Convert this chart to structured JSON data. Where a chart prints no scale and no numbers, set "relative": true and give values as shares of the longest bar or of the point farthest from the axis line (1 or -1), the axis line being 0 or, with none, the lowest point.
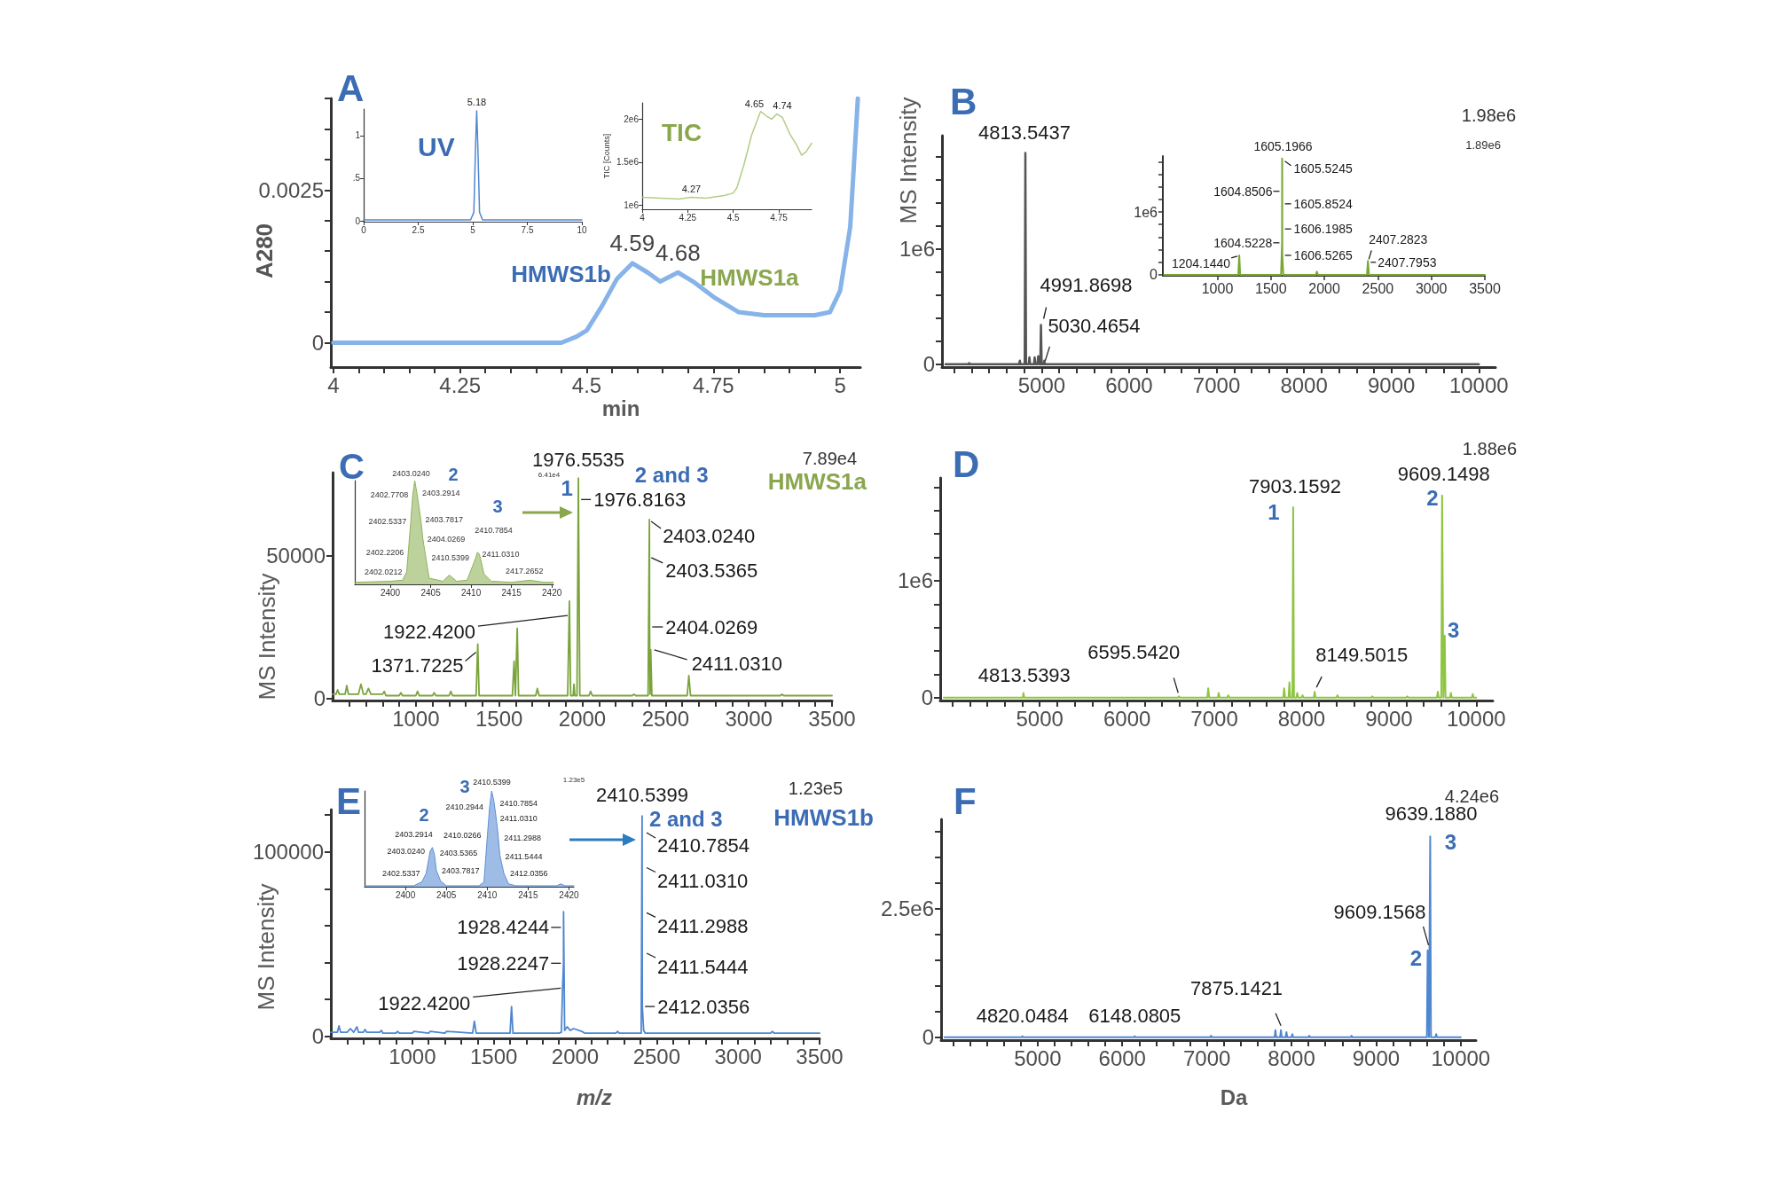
{
  "chart_data": [
    {
      "type": "line",
      "title": "A",
      "xlabel": "min",
      "ylabel": "A280",
      "color": "#86b3e8",
      "x": [
        4,
        4.25,
        4.45,
        4.48,
        4.5,
        4.53,
        4.56,
        4.59,
        4.62,
        4.645,
        4.68,
        4.71,
        4.75,
        4.8,
        4.85,
        4.9,
        4.95,
        4.98,
        5,
        5.02,
        5.035
      ],
      "values": [
        0,
        0,
        0,
        0.0001,
        0.0002,
        0.0006,
        0.00105,
        0.0013,
        0.00115,
        0.001,
        0.00115,
        0.001,
        0.00075,
        0.0005,
        0.00045,
        0.00045,
        0.00045,
        0.0005,
        0.00085,
        0.0019,
        0.004
      ],
      "xlim": [
        3.995,
        5.04
      ],
      "xticks": [
        4,
        {
          "value": 4.05,
          "label": null
        },
        {
          "value": 4.1,
          "label": null
        },
        {
          "value": 4.15,
          "label": null
        },
        {
          "value": 4.2,
          "label": null
        },
        4.25,
        {
          "value": 4.3,
          "label": null
        },
        {
          "value": 4.35,
          "label": null
        },
        {
          "value": 4.4,
          "label": null
        },
        {
          "value": 4.45,
          "label": null
        },
        4.5,
        {
          "value": 4.55,
          "label": null
        },
        {
          "value": 4.6,
          "label": null
        },
        {
          "value": 4.65,
          "label": null
        },
        {
          "value": 4.7,
          "label": null
        },
        4.75,
        {
          "value": 4.8,
          "label": null
        },
        {
          "value": 4.85,
          "label": null
        },
        {
          "value": 4.9,
          "label": null
        },
        {
          "value": 4.95,
          "label": null
        },
        5
      ],
      "ylim": [
        -0.0004,
        0.004
      ],
      "yticks": [
        0,
        {
          "value": 0.0005,
          "label": null
        },
        {
          "value": 0.001,
          "label": null
        },
        {
          "value": 0.0015,
          "label": null
        },
        {
          "value": 0.002,
          "label": null
        },
        0.0025,
        {
          "value": 0.003,
          "label": null
        },
        {
          "value": 0.0035,
          "label": null
        },
        {
          "value": 0.004,
          "label": null
        }
      ],
      "annotations": [
        {
          "text": "4.59",
          "x": 4.59,
          "y": 0.0013
        },
        {
          "text": "4.68",
          "x": 4.68,
          "y": 0.00115
        },
        {
          "text": "HMWS1b",
          "x": 4.59,
          "y": 0.0013
        },
        {
          "text": "HMWS1a",
          "x": 4.68,
          "y": 0.00115
        }
      ]
    },
    {
      "type": "line",
      "title": "UV",
      "color": "#4f86d0",
      "x": [
        0,
        2,
        4.9,
        5.05,
        5.12,
        5.18,
        5.24,
        5.31,
        5.45,
        8,
        10
      ],
      "values": [
        0.01,
        0.01,
        0.01,
        0.1,
        0.8,
        1.29,
        0.8,
        0.1,
        0.01,
        0.01,
        0.01
      ],
      "xlim": [
        0,
        10
      ],
      "xticks": [
        0,
        2.5,
        5,
        7.5,
        10
      ],
      "ylim": [
        -0.01,
        1.31
      ],
      "yticks": [
        0,
        {
          "value": 0.5,
          "label": ".5"
        },
        1
      ],
      "annotations": [
        {
          "text": "5.18",
          "x": 5.18,
          "y": 1.29
        }
      ]
    },
    {
      "type": "line",
      "title": "TIC",
      "ylabel": "TIC [Counts]",
      "color": "#b3cd85",
      "x": [
        4,
        4.1,
        4.2,
        4.27,
        4.35,
        4.45,
        4.5,
        4.52,
        4.56,
        4.6,
        4.65,
        4.68,
        4.71,
        4.74,
        4.77,
        4.81,
        4.85,
        4.875,
        4.9,
        4.93
      ],
      "values": [
        1090000,
        1080000,
        1070000,
        1090000,
        1080000,
        1110000,
        1140000,
        1200000,
        1480000,
        1810000,
        2090000,
        2040000,
        2000000,
        2060000,
        2020000,
        1830000,
        1690000,
        1580000,
        1620000,
        1720000
      ],
      "xlim": [
        4,
        4.93
      ],
      "xticks": [
        4,
        4.25,
        4.5,
        4.75
      ],
      "ylim": [
        950000,
        2190000
      ],
      "yticks": [
        {
          "value": 1000000,
          "label": "1e6"
        },
        {
          "value": 1500000,
          "label": "1.5e6"
        },
        {
          "value": 2000000,
          "label": "2e6"
        }
      ],
      "annotations": [
        {
          "text": "4.27",
          "x": 4.27,
          "y": 1090000
        },
        {
          "text": "4.65",
          "x": 4.65,
          "y": 2090000
        },
        {
          "text": "4.74",
          "x": 4.74,
          "y": 2060000
        }
      ]
    },
    {
      "type": "line",
      "title": "B",
      "ylabel": "MS Intensity",
      "color": "#555555",
      "x": [
        3900,
        4162,
        4170,
        4178,
        4742,
        4750,
        4758,
        4806,
        4813.5437,
        4821,
        4852,
        4860,
        4868,
        4912,
        4920,
        4928,
        4952,
        4960,
        4968,
        4984,
        4991.8698,
        5000,
        5022,
        5030.4654,
        5038,
        10000
      ],
      "values": [
        0,
        0,
        10000,
        0,
        0,
        30000,
        0,
        0,
        1830000,
        0,
        0,
        60000,
        0,
        0,
        60000,
        0,
        0,
        70000,
        0,
        0,
        340000,
        0,
        0,
        30000,
        0,
        0
      ],
      "xlim": [
        3860,
        10190
      ],
      "xticks": [
        {
          "value": 4000,
          "label": null
        },
        {
          "value": 4200,
          "label": null
        },
        {
          "value": 4400,
          "label": null
        },
        {
          "value": 4600,
          "label": null
        },
        {
          "value": 4800,
          "label": null
        },
        5000,
        {
          "value": 5200,
          "label": null
        },
        {
          "value": 5400,
          "label": null
        },
        {
          "value": 5600,
          "label": null
        },
        {
          "value": 5800,
          "label": null
        },
        6000,
        {
          "value": 6200,
          "label": null
        },
        {
          "value": 6400,
          "label": null
        },
        {
          "value": 6600,
          "label": null
        },
        {
          "value": 6800,
          "label": null
        },
        7000,
        {
          "value": 7200,
          "label": null
        },
        {
          "value": 7400,
          "label": null
        },
        {
          "value": 7600,
          "label": null
        },
        {
          "value": 7800,
          "label": null
        },
        8000,
        {
          "value": 8200,
          "label": null
        },
        {
          "value": 8400,
          "label": null
        },
        {
          "value": 8600,
          "label": null
        },
        {
          "value": 8800,
          "label": null
        },
        9000,
        {
          "value": 9200,
          "label": null
        },
        {
          "value": 9400,
          "label": null
        },
        {
          "value": 9600,
          "label": null
        },
        {
          "value": 9800,
          "label": null
        },
        10000
      ],
      "ylim": [
        -25000,
        1980000
      ],
      "yticks": [
        0,
        {
          "value": 200000,
          "label": null
        },
        {
          "value": 400000,
          "label": null
        },
        {
          "value": 600000,
          "label": null
        },
        {
          "value": 800000,
          "label": null
        },
        {
          "value": 1000000,
          "label": "1e6"
        },
        {
          "value": 1200000,
          "label": null
        },
        {
          "value": 1400000,
          "label": null
        },
        {
          "value": 1600000,
          "label": null
        },
        {
          "value": 1800000,
          "label": null
        }
      ],
      "annotations": [
        "1.98e6",
        {
          "text": "4813.5437",
          "x": 4813.5437,
          "y": 1830000
        },
        {
          "text": "4991.8698",
          "x": 4991.8698,
          "y": 340000
        },
        {
          "text": "5030.4654",
          "x": 5030.4654,
          "y": 30000
        }
      ]
    },
    {
      "type": "line",
      "color": "#78a832",
      "x": [
        500,
        1195,
        1204.144,
        1213,
        1595,
        1604.5228,
        1604.8506,
        1605.1966,
        1605.5245,
        1605.8524,
        1606.1985,
        1606.5265,
        1616,
        1920,
        1930,
        1940,
        2398,
        2407.2823,
        2407.7953,
        2417,
        3500
      ],
      "values": [
        0,
        0,
        310000,
        0,
        0,
        510000,
        1330000,
        1850000,
        1780000,
        1130000,
        730000,
        310000,
        0,
        0,
        50000,
        0,
        0,
        220000,
        200000,
        0,
        0
      ],
      "xlim": [
        490,
        3500
      ],
      "xticks": [
        1000,
        1500,
        2000,
        2500,
        3000,
        3500
      ],
      "ylim": [
        -15000,
        1890000
      ],
      "yticks": [
        0,
        {
          "value": 200000,
          "label": null
        },
        {
          "value": 400000,
          "label": null
        },
        {
          "value": 600000,
          "label": null
        },
        {
          "value": 800000,
          "label": null
        },
        {
          "value": 1000000,
          "label": "1e6"
        },
        {
          "value": 1200000,
          "label": null
        },
        {
          "value": 1400000,
          "label": null
        },
        {
          "value": 1600000,
          "label": null
        },
        {
          "value": 1800000,
          "label": null
        }
      ],
      "annotations": [
        "1.89e6",
        {
          "text": "1605.1966",
          "x": 1605.1966,
          "y": 1850000
        },
        {
          "text": "1605.5245",
          "x": 1605.5245,
          "y": 1780000
        },
        {
          "text": "1604.8506",
          "x": 1604.8506,
          "y": 1330000
        },
        {
          "text": "1605.8524",
          "x": 1605.8524,
          "y": 1130000
        },
        {
          "text": "1606.1985",
          "x": 1606.1985,
          "y": 730000
        },
        {
          "text": "1604.5228",
          "x": 1604.5228,
          "y": 510000
        },
        {
          "text": "1606.5265",
          "x": 1606.5265,
          "y": 310000
        },
        {
          "text": "1204.1440",
          "x": 1204.144,
          "y": 310000
        },
        {
          "text": "2407.2823",
          "x": 2407.2823,
          "y": 220000
        },
        {
          "text": "2407.7953",
          "x": 2407.7953,
          "y": 200000
        }
      ]
    },
    {
      "type": "line",
      "title": "C",
      "ylabel": "MS Intensity",
      "color": "#7aa43a",
      "x": [
        500,
        520,
        530,
        540,
        575,
        585,
        595,
        655,
        670,
        685,
        700,
        715,
        730,
        800,
        810,
        820,
        900,
        910,
        920,
        1000,
        1010,
        1020,
        1100,
        1110,
        1120,
        1200,
        1210,
        1220,
        1362,
        1371.7225,
        1380,
        1580,
        1590,
        1598,
        1601,
        1609,
        1617,
        1720,
        1730,
        1740,
        1912,
        1922.42,
        1930,
        1945,
        1950,
        1955,
        1968,
        1976.5535,
        1976.8163,
        1985,
        2040,
        2050,
        2060,
        2300,
        2310,
        2320,
        2395,
        2403.024,
        2403.5365,
        2404.0269,
        2407,
        2411.031,
        2418,
        2630,
        2640,
        2650,
        3190,
        3200,
        3210,
        3500
      ],
      "values": [
        1500,
        1500,
        3000,
        1500,
        1500,
        4500,
        1500,
        1500,
        5000,
        1500,
        1500,
        3500,
        1500,
        1500,
        2500,
        1000,
        1000,
        2000,
        1000,
        1000,
        2500,
        1000,
        1000,
        2000,
        1000,
        1000,
        2500,
        1000,
        1000,
        19000,
        1000,
        1000,
        13000,
        1000,
        1000,
        24500,
        1000,
        1000,
        3500,
        1000,
        1000,
        34000,
        1000,
        1000,
        5000,
        1000,
        1000,
        77000,
        69500,
        1000,
        1000,
        2500,
        1000,
        1000,
        1500,
        1000,
        1000,
        62500,
        49500,
        25000,
        1500,
        17000,
        1000,
        1000,
        8000,
        1000,
        1000,
        1500,
        1000,
        1000
      ],
      "xlim": [
        500,
        3500
      ],
      "xticks": [
        {
          "value": 600,
          "label": null
        },
        {
          "value": 700,
          "label": null
        },
        {
          "value": 800,
          "label": null
        },
        {
          "value": 900,
          "label": null
        },
        1000,
        {
          "value": 1100,
          "label": null
        },
        {
          "value": 1200,
          "label": null
        },
        {
          "value": 1300,
          "label": null
        },
        {
          "value": 1400,
          "label": null
        },
        1500,
        {
          "value": 1600,
          "label": null
        },
        {
          "value": 1700,
          "label": null
        },
        {
          "value": 1800,
          "label": null
        },
        {
          "value": 1900,
          "label": null
        },
        2000,
        {
          "value": 2100,
          "label": null
        },
        {
          "value": 2200,
          "label": null
        },
        {
          "value": 2300,
          "label": null
        },
        {
          "value": 2400,
          "label": null
        },
        2500,
        {
          "value": 2600,
          "label": null
        },
        {
          "value": 2700,
          "label": null
        },
        {
          "value": 2800,
          "label": null
        },
        {
          "value": 2900,
          "label": null
        },
        3000,
        {
          "value": 3100,
          "label": null
        },
        {
          "value": 3200,
          "label": null
        },
        {
          "value": 3300,
          "label": null
        },
        {
          "value": 3400,
          "label": null
        },
        3500
      ],
      "ylim": [
        -700,
        78900
      ],
      "yticks": [
        0,
        50000
      ],
      "annotations": [
        "7.89e4",
        "HMWS1a",
        {
          "text": "1976.5535",
          "x": 1976.5535,
          "y": 77000
        },
        {
          "text": "1",
          "x": 1976.5535,
          "y": 77000
        },
        {
          "text": "1976.8163",
          "x": 1976.8163,
          "y": 69500
        },
        {
          "text": "2 and 3",
          "x": 2403.024,
          "y": 62500
        },
        {
          "text": "2403.0240",
          "x": 2403.024,
          "y": 62500
        },
        {
          "text": "2403.5365",
          "x": 2403.5365,
          "y": 49500
        },
        {
          "text": "2404.0269",
          "x": 2404.0269,
          "y": 25000
        },
        {
          "text": "2411.0310",
          "x": 2411.031,
          "y": 17000
        },
        {
          "text": "1922.4200",
          "x": 1922.42,
          "y": 29000
        },
        {
          "text": "1371.7225",
          "x": 1371.7225,
          "y": 19000
        }
      ]
    },
    {
      "type": "area",
      "relative": true,
      "color": "#8fb35a",
      "x": [
        2395.6,
        2400,
        2401.5,
        2402.0212,
        2402.2206,
        2402.5337,
        2402.7708,
        2403.024,
        2403.2914,
        2403.5365,
        2403.7817,
        2404.0269,
        2404.8,
        2406.5,
        2407.3,
        2408.2,
        2409.5,
        2410.2,
        2410.5399,
        2410.7854,
        2411.031,
        2411.6,
        2412.5,
        2415,
        2417.2652,
        2419,
        2420.2
      ],
      "values": [
        0.02,
        0.03,
        0.04,
        0.12,
        0.31,
        0.61,
        0.86,
        1,
        0.88,
        0.75,
        0.62,
        0.44,
        0.06,
        0.03,
        0.09,
        0.03,
        0.04,
        0.18,
        0.25,
        0.31,
        0.29,
        0.1,
        0.03,
        0.02,
        0.04,
        0.02,
        0.02
      ],
      "xlim": [
        2395.6,
        2420.2
      ],
      "xticks": [
        2400,
        2405,
        2410,
        2415,
        2420
      ],
      "annotations": [
        "6.41e4",
        "2",
        "3",
        {
          "text": "2403.0240",
          "x": 2403.024,
          "y": 1
        },
        {
          "text": "2402.7708",
          "x": 2402.7708,
          "y": 0.86
        },
        {
          "text": "2403.2914",
          "x": 2403.2914,
          "y": 0.88
        },
        {
          "text": "2402.5337",
          "x": 2402.5337,
          "y": 0.61
        },
        {
          "text": "2403.7817",
          "x": 2403.7817,
          "y": 0.62
        },
        {
          "text": "2402.2206",
          "x": 2402.2206,
          "y": 0.31
        },
        {
          "text": "2404.0269",
          "x": 2404.0269,
          "y": 0.44
        },
        {
          "text": "2402.0212",
          "x": 2402.0212,
          "y": 0.12
        },
        {
          "text": "2410.7854",
          "x": 2410.7854,
          "y": 0.31
        },
        {
          "text": "2410.5399",
          "x": 2410.5399,
          "y": 0.25
        },
        {
          "text": "2411.0310",
          "x": 2411.031,
          "y": 0.29
        },
        {
          "text": "2417.2652",
          "x": 2417.2652,
          "y": 0.04
        }
      ]
    },
    {
      "type": "line",
      "title": "D",
      "color": "#8dc540",
      "x": [
        3900,
        4805,
        4813.5393,
        4822,
        6585,
        6595.542,
        6605,
        6920,
        6930,
        6940,
        7040,
        7050,
        7060,
        7150,
        7160,
        7170,
        7790,
        7800,
        7810,
        7850,
        7860,
        7870,
        7895,
        7903.1592,
        7912,
        7940,
        7950,
        7960,
        8000,
        8010,
        8020,
        8140,
        8149.5015,
        8158,
        8400,
        8410,
        8420,
        8800,
        8810,
        8820,
        9200,
        9210,
        9220,
        9550,
        9560,
        9570,
        9600,
        9609.1498,
        9624,
        9630,
        9639,
        9648,
        9700,
        9710,
        9720,
        9950,
        9960,
        9970,
        10000
      ],
      "values": [
        0,
        0,
        40000,
        0,
        0,
        10000,
        0,
        0,
        80000,
        0,
        0,
        40000,
        0,
        0,
        20000,
        0,
        0,
        80000,
        0,
        0,
        130000,
        0,
        0,
        1630000,
        0,
        0,
        40000,
        0,
        0,
        20000,
        0,
        0,
        50000,
        0,
        0,
        20000,
        0,
        0,
        10000,
        0,
        0,
        10000,
        0,
        0,
        50000,
        0,
        0,
        1730000,
        0,
        0,
        530000,
        0,
        0,
        40000,
        0,
        0,
        30000,
        0,
        0
      ],
      "xlim": [
        3860,
        10190
      ],
      "xticks": [
        {
          "value": 4000,
          "label": null
        },
        {
          "value": 4200,
          "label": null
        },
        {
          "value": 4400,
          "label": null
        },
        {
          "value": 4600,
          "label": null
        },
        {
          "value": 4800,
          "label": null
        },
        5000,
        {
          "value": 5200,
          "label": null
        },
        {
          "value": 5400,
          "label": null
        },
        {
          "value": 5600,
          "label": null
        },
        {
          "value": 5800,
          "label": null
        },
        6000,
        {
          "value": 6200,
          "label": null
        },
        {
          "value": 6400,
          "label": null
        },
        {
          "value": 6600,
          "label": null
        },
        {
          "value": 6800,
          "label": null
        },
        7000,
        {
          "value": 7200,
          "label": null
        },
        {
          "value": 7400,
          "label": null
        },
        {
          "value": 7600,
          "label": null
        },
        {
          "value": 7800,
          "label": null
        },
        8000,
        {
          "value": 8200,
          "label": null
        },
        {
          "value": 8400,
          "label": null
        },
        {
          "value": 8600,
          "label": null
        },
        {
          "value": 8800,
          "label": null
        },
        9000,
        {
          "value": 9200,
          "label": null
        },
        {
          "value": 9400,
          "label": null
        },
        {
          "value": 9600,
          "label": null
        },
        {
          "value": 9800,
          "label": null
        },
        10000
      ],
      "ylim": [
        -25000,
        1880000
      ],
      "yticks": [
        0,
        {
          "value": 200000,
          "label": null
        },
        {
          "value": 400000,
          "label": null
        },
        {
          "value": 600000,
          "label": null
        },
        {
          "value": 800000,
          "label": null
        },
        {
          "value": 1000000,
          "label": "1e6"
        },
        {
          "value": 1200000,
          "label": null
        },
        {
          "value": 1400000,
          "label": null
        },
        {
          "value": 1600000,
          "label": null
        },
        {
          "value": 1800000,
          "label": null
        }
      ],
      "annotations": [
        "1.88e6",
        {
          "text": "7903.1592",
          "x": 7903.1592,
          "y": 1630000
        },
        {
          "text": "1",
          "x": 7903.1592,
          "y": 1630000
        },
        {
          "text": "9609.1498",
          "x": 9609.1498,
          "y": 1730000
        },
        {
          "text": "2",
          "x": 9609.1498,
          "y": 1730000
        },
        {
          "text": "3",
          "x": 9639,
          "y": 530000
        },
        {
          "text": "4813.5393",
          "x": 4813.5393,
          "y": 40000
        },
        {
          "text": "6595.5420",
          "x": 6595.542,
          "y": 10000
        },
        {
          "text": "8149.5015",
          "x": 8149.5015,
          "y": 50000
        }
      ]
    },
    {
      "type": "line",
      "title": "E",
      "xlabel": "m/z",
      "ylabel": "MS Intensity",
      "color": "#4f86d0",
      "x": [
        500,
        540,
        550,
        560,
        600,
        620,
        640,
        660,
        670,
        700,
        710,
        720,
        800,
        810,
        820,
        900,
        910,
        920,
        1000,
        1010,
        1100,
        1110,
        1200,
        1210,
        1370,
        1381,
        1392,
        1600,
        1609,
        1618,
        1900,
        1915,
        1922.42,
        1928.2247,
        1928.4244,
        1935,
        1950,
        1970,
        1990,
        2040,
        2060,
        2250,
        2260,
        2270,
        2395,
        2405,
        2410.5399,
        2410.7854,
        2411.031,
        2411.2988,
        2411.5444,
        2412.0356,
        2420,
        2430,
        3200,
        3210,
        3220,
        3500
      ],
      "values": [
        2000,
        2000,
        5500,
        2000,
        2000,
        4000,
        2000,
        5000,
        2000,
        2000,
        3500,
        2000,
        2000,
        3000,
        1500,
        1500,
        2500,
        1500,
        1500,
        2500,
        1500,
        2500,
        1500,
        2500,
        1500,
        8000,
        1500,
        1500,
        16000,
        1500,
        1500,
        2000,
        26000,
        39500,
        67500,
        3000,
        5000,
        3000,
        4000,
        2500,
        1500,
        1500,
        2500,
        1500,
        1500,
        1500,
        119500,
        109000,
        90500,
        66000,
        44000,
        16000,
        3000,
        1500,
        1500,
        2500,
        1500,
        1500
      ],
      "xlim": [
        500,
        3500
      ],
      "xticks": [
        {
          "value": 600,
          "label": null
        },
        {
          "value": 700,
          "label": null
        },
        {
          "value": 800,
          "label": null
        },
        {
          "value": 900,
          "label": null
        },
        1000,
        {
          "value": 1100,
          "label": null
        },
        {
          "value": 1200,
          "label": null
        },
        {
          "value": 1300,
          "label": null
        },
        {
          "value": 1400,
          "label": null
        },
        1500,
        {
          "value": 1600,
          "label": null
        },
        {
          "value": 1700,
          "label": null
        },
        {
          "value": 1800,
          "label": null
        },
        {
          "value": 1900,
          "label": null
        },
        2000,
        {
          "value": 2100,
          "label": null
        },
        {
          "value": 2200,
          "label": null
        },
        {
          "value": 2300,
          "label": null
        },
        {
          "value": 2400,
          "label": null
        },
        2500,
        {
          "value": 2600,
          "label": null
        },
        {
          "value": 2700,
          "label": null
        },
        {
          "value": 2800,
          "label": null
        },
        {
          "value": 2900,
          "label": null
        },
        3000,
        {
          "value": 3100,
          "label": null
        },
        {
          "value": 3200,
          "label": null
        },
        {
          "value": 3300,
          "label": null
        },
        {
          "value": 3400,
          "label": null
        },
        3500
      ],
      "ylim": [
        -1300,
        123000
      ],
      "yticks": [
        0,
        {
          "value": 20000,
          "label": null
        },
        {
          "value": 40000,
          "label": null
        },
        {
          "value": 60000,
          "label": null
        },
        {
          "value": 80000,
          "label": null
        },
        100000,
        {
          "value": 120000,
          "label": null
        }
      ],
      "annotations": [
        "1.23e5",
        "HMWS1b",
        {
          "text": "2410.5399",
          "x": 2410.5399,
          "y": 119500
        },
        {
          "text": "2 and 3",
          "x": 2410.5399,
          "y": 119500
        },
        {
          "text": "2410.7854",
          "x": 2410.7854,
          "y": 109000
        },
        {
          "text": "2411.0310",
          "x": 2411.031,
          "y": 90500
        },
        {
          "text": "2411.2988",
          "x": 2411.2988,
          "y": 66000
        },
        {
          "text": "2411.5444",
          "x": 2411.5444,
          "y": 44000
        },
        {
          "text": "2412.0356",
          "x": 2412.0356,
          "y": 16000
        },
        {
          "text": "1928.4244",
          "x": 1928.4244,
          "y": 59000
        },
        {
          "text": "1928.2247",
          "x": 1928.2247,
          "y": 39500
        },
        {
          "text": "1922.4200",
          "x": 1922.42,
          "y": 26000
        }
      ]
    },
    {
      "type": "area",
      "relative": true,
      "color": "#5d8fd4",
      "x": [
        2395,
        2401,
        2402,
        2402.5337,
        2403.024,
        2403.2914,
        2403.5365,
        2403.7817,
        2404.3,
        2405,
        2409,
        2409.6,
        2410.0266,
        2410.2944,
        2410.5399,
        2410.7854,
        2411.031,
        2411.2988,
        2411.5444,
        2412.0356,
        2412.6,
        2413.5,
        2418.5,
        2419,
        2419.5,
        2420.6
      ],
      "values": [
        0.01,
        0.01,
        0.05,
        0.14,
        0.37,
        0.41,
        0.34,
        0.17,
        0.06,
        0.01,
        0.01,
        0.05,
        0.54,
        0.83,
        1,
        0.91,
        0.76,
        0.57,
        0.33,
        0.14,
        0.03,
        0.01,
        0.01,
        0.03,
        0.01,
        0.01
      ],
      "xlim": [
        2395,
        2420.6
      ],
      "xticks": [
        2400,
        2405,
        2410,
        2415,
        2420
      ],
      "annotations": [
        "1.23e5",
        "2",
        "3",
        {
          "text": "2410.5399",
          "x": 2410.5399,
          "y": 1
        },
        {
          "text": "2410.2944",
          "x": 2410.2944,
          "y": 0.83
        },
        {
          "text": "2410.7854",
          "x": 2410.7854,
          "y": 0.91
        },
        {
          "text": "2411.0310",
          "x": 2411.031,
          "y": 0.76
        },
        {
          "text": "2410.0266",
          "x": 2410.0266,
          "y": 0.54
        },
        {
          "text": "2411.2988",
          "x": 2411.2988,
          "y": 0.57
        },
        {
          "text": "2403.2914",
          "x": 2403.2914,
          "y": 0.41
        },
        {
          "text": "2403.0240",
          "x": 2403.024,
          "y": 0.37
        },
        {
          "text": "2403.5365",
          "x": 2403.5365,
          "y": 0.34
        },
        {
          "text": "2411.5444",
          "x": 2411.5444,
          "y": 0.33
        },
        {
          "text": "2402.5337",
          "x": 2402.5337,
          "y": 0.14
        },
        {
          "text": "2403.7817",
          "x": 2403.7817,
          "y": 0.17
        },
        {
          "text": "2412.0356",
          "x": 2412.0356,
          "y": 0.14
        }
      ]
    },
    {
      "type": "line",
      "title": "F",
      "xlabel": "Da",
      "color": "#4f86d0",
      "x": [
        3900,
        4812,
        4820.0484,
        4828,
        6140,
        6148.0805,
        6156,
        7040,
        7050,
        7060,
        7800,
        7810,
        7820,
        7865,
        7875.1421,
        7885,
        7930,
        7940,
        7950,
        8000,
        8010,
        8020,
        8200,
        8210,
        8220,
        8700,
        8710,
        8720,
        9600,
        9609.1568,
        9624,
        9630,
        9639.188,
        9648,
        9700,
        9710,
        9720,
        10000
      ],
      "values": [
        0,
        0,
        20000,
        0,
        0,
        20000,
        0,
        0,
        30000,
        0,
        0,
        140000,
        0,
        0,
        140000,
        0,
        0,
        100000,
        0,
        0,
        60000,
        0,
        0,
        30000,
        0,
        0,
        30000,
        0,
        0,
        1690000,
        0,
        0,
        3910000,
        0,
        0,
        60000,
        0,
        0
      ],
      "xlim": [
        3860,
        10180
      ],
      "xticks": [
        {
          "value": 4000,
          "label": null
        },
        {
          "value": 4200,
          "label": null
        },
        {
          "value": 4400,
          "label": null
        },
        {
          "value": 4600,
          "label": null
        },
        {
          "value": 4800,
          "label": null
        },
        5000,
        {
          "value": 5200,
          "label": null
        },
        {
          "value": 5400,
          "label": null
        },
        {
          "value": 5600,
          "label": null
        },
        {
          "value": 5800,
          "label": null
        },
        6000,
        {
          "value": 6200,
          "label": null
        },
        {
          "value": 6400,
          "label": null
        },
        {
          "value": 6600,
          "label": null
        },
        {
          "value": 6800,
          "label": null
        },
        7000,
        {
          "value": 7200,
          "label": null
        },
        {
          "value": 7400,
          "label": null
        },
        {
          "value": 7600,
          "label": null
        },
        {
          "value": 7800,
          "label": null
        },
        8000,
        {
          "value": 8200,
          "label": null
        },
        {
          "value": 8400,
          "label": null
        },
        {
          "value": 8600,
          "label": null
        },
        {
          "value": 8800,
          "label": null
        },
        9000,
        {
          "value": 9200,
          "label": null
        },
        {
          "value": 9400,
          "label": null
        },
        {
          "value": 9600,
          "label": null
        },
        {
          "value": 9800,
          "label": null
        },
        10000
      ],
      "ylim": [
        -55000,
        4240000
      ],
      "yticks": [
        0,
        {
          "value": 500000,
          "label": null
        },
        {
          "value": 1000000,
          "label": null
        },
        {
          "value": 1500000,
          "label": null
        },
        {
          "value": 2000000,
          "label": null
        },
        {
          "value": 2500000,
          "label": "2.5e6"
        },
        {
          "value": 3000000,
          "label": null
        },
        {
          "value": 3500000,
          "label": null
        },
        {
          "value": 4000000,
          "label": null
        }
      ],
      "annotations": [
        "4.24e6",
        {
          "text": "9639.1880",
          "x": 9639.188,
          "y": 3910000
        },
        {
          "text": "3",
          "x": 9639.188,
          "y": 3910000
        },
        {
          "text": "9609.1568",
          "x": 9609.1568,
          "y": 1690000
        },
        {
          "text": "2",
          "x": 9609.1568,
          "y": 1690000
        },
        {
          "text": "4820.0484",
          "x": 4820.0484,
          "y": 20000
        },
        {
          "text": "6148.0805",
          "x": 6148.0805,
          "y": 20000
        },
        {
          "text": "7875.1421",
          "x": 7875.1421,
          "y": 140000
        }
      ]
    }
  ]
}
